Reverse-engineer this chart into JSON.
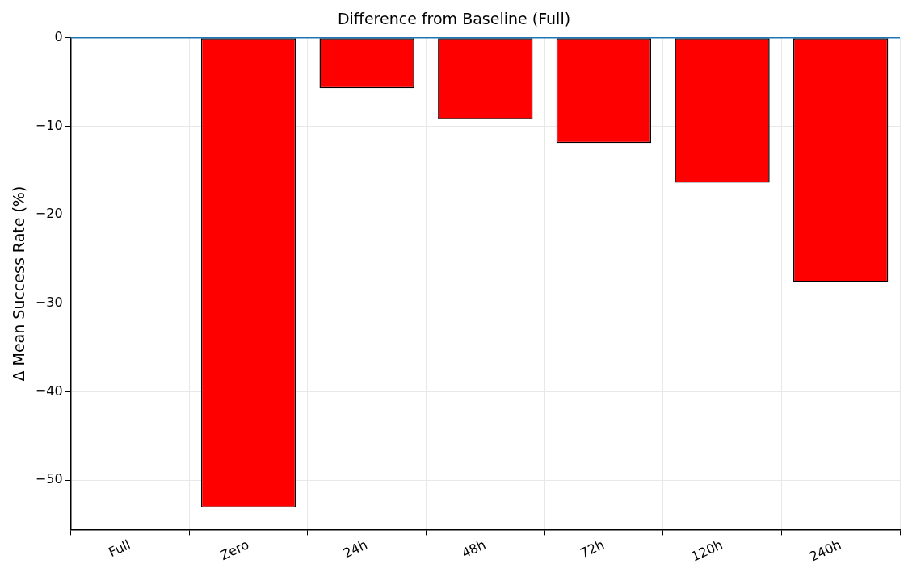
{
  "chart_data": {
    "type": "bar",
    "title": "Difference from Baseline (Full)",
    "ylabel": "Δ Mean Success Rate (%)",
    "categories": [
      "Full",
      "Zero",
      "24h",
      "48h",
      "72h",
      "120h",
      "240h"
    ],
    "values": [
      0,
      -53.1,
      -5.7,
      -9.2,
      -11.9,
      -16.4,
      -27.6
    ],
    "color": "#ff0000",
    "ylim": [
      -55.6,
      0
    ],
    "yticks": [
      -50,
      -40,
      -30,
      -20,
      -10,
      0
    ],
    "grid": true,
    "ref_lines": [
      {
        "axis": "y",
        "value": 0,
        "color": "#1f77b4"
      }
    ]
  }
}
